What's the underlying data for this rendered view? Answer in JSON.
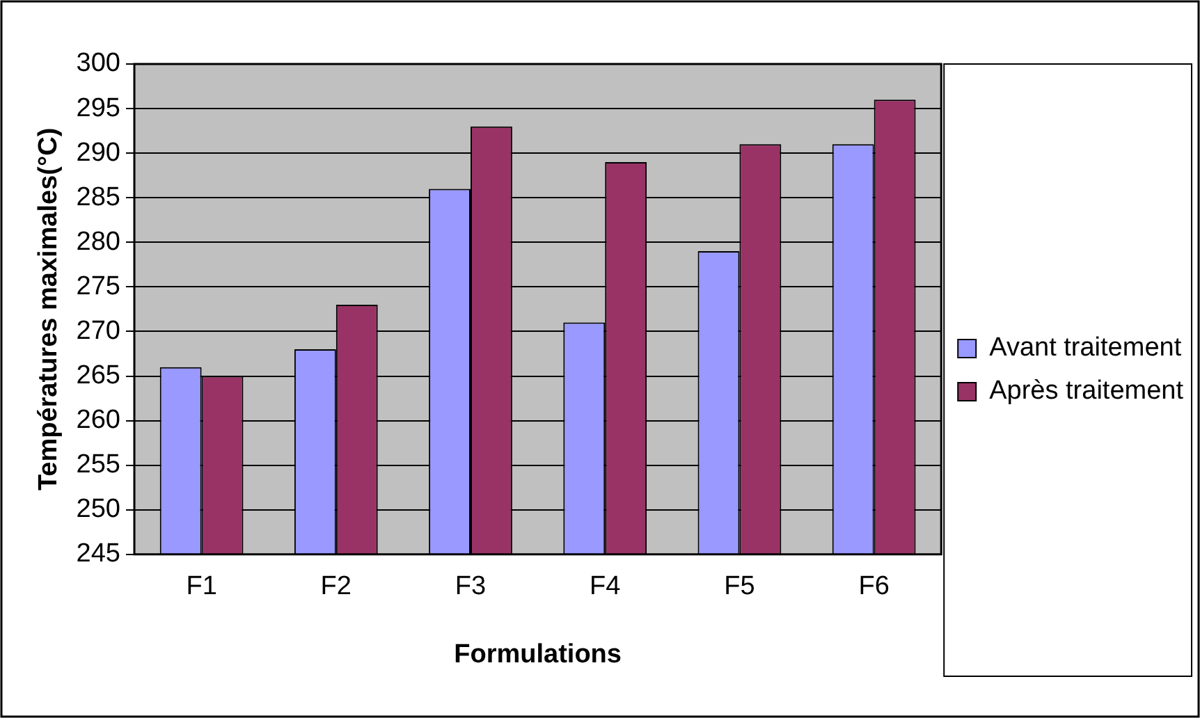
{
  "chart_data": {
    "type": "bar",
    "xlabel": "Formulations",
    "ylabel": "Températures maximales(°C)",
    "categories": [
      "F1",
      "F2",
      "F3",
      "F4",
      "F5",
      "F6"
    ],
    "series": [
      {
        "name": "Avant traitement",
        "color": "#9999ff",
        "values": [
          266,
          268,
          286,
          271,
          279,
          291
        ]
      },
      {
        "name": "Après traitement",
        "color": "#993366",
        "values": [
          265,
          273,
          293,
          289,
          291,
          296
        ]
      }
    ],
    "ylim": [
      245,
      300
    ],
    "yticks": [
      245,
      250,
      255,
      260,
      265,
      270,
      275,
      280,
      285,
      290,
      295,
      300
    ],
    "grid": "y",
    "legend": "right"
  }
}
